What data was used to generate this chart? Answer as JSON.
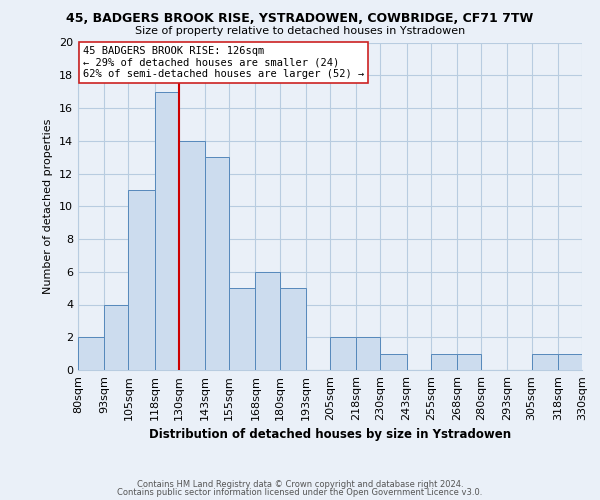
{
  "title_line1": "45, BADGERS BROOK RISE, YSTRADOWEN, COWBRIDGE, CF71 7TW",
  "title_line2": "Size of property relative to detached houses in Ystradowen",
  "xlabel": "Distribution of detached houses by size in Ystradowen",
  "ylabel": "Number of detached properties",
  "bar_left_edges": [
    80,
    93,
    105,
    118,
    130,
    143,
    155,
    168,
    180,
    193,
    205,
    218,
    230,
    243,
    255,
    268,
    280,
    293,
    305,
    318
  ],
  "bar_widths": [
    13,
    12,
    13,
    12,
    13,
    12,
    13,
    12,
    13,
    12,
    13,
    12,
    13,
    12,
    13,
    12,
    13,
    12,
    13,
    12
  ],
  "bar_heights": [
    2,
    4,
    11,
    17,
    14,
    13,
    5,
    6,
    5,
    0,
    2,
    2,
    1,
    0,
    1,
    1,
    0,
    0,
    1,
    1
  ],
  "bar_color": "#ccdcee",
  "bar_edgecolor": "#5588bb",
  "reference_line_x": 130,
  "reference_line_color": "#cc0000",
  "ylim": [
    0,
    20
  ],
  "yticks": [
    0,
    2,
    4,
    6,
    8,
    10,
    12,
    14,
    16,
    18,
    20
  ],
  "xtick_labels": [
    "80sqm",
    "93sqm",
    "105sqm",
    "118sqm",
    "130sqm",
    "143sqm",
    "155sqm",
    "168sqm",
    "180sqm",
    "193sqm",
    "205sqm",
    "218sqm",
    "230sqm",
    "243sqm",
    "255sqm",
    "268sqm",
    "280sqm",
    "293sqm",
    "305sqm",
    "318sqm",
    "330sqm"
  ],
  "annotation_text": "45 BADGERS BROOK RISE: 126sqm\n← 29% of detached houses are smaller (24)\n62% of semi-detached houses are larger (52) →",
  "footer_line1": "Contains HM Land Registry data © Crown copyright and database right 2024.",
  "footer_line2": "Contains public sector information licensed under the Open Government Licence v3.0.",
  "grid_color": "#b8cce0",
  "background_color": "#eaf0f8"
}
